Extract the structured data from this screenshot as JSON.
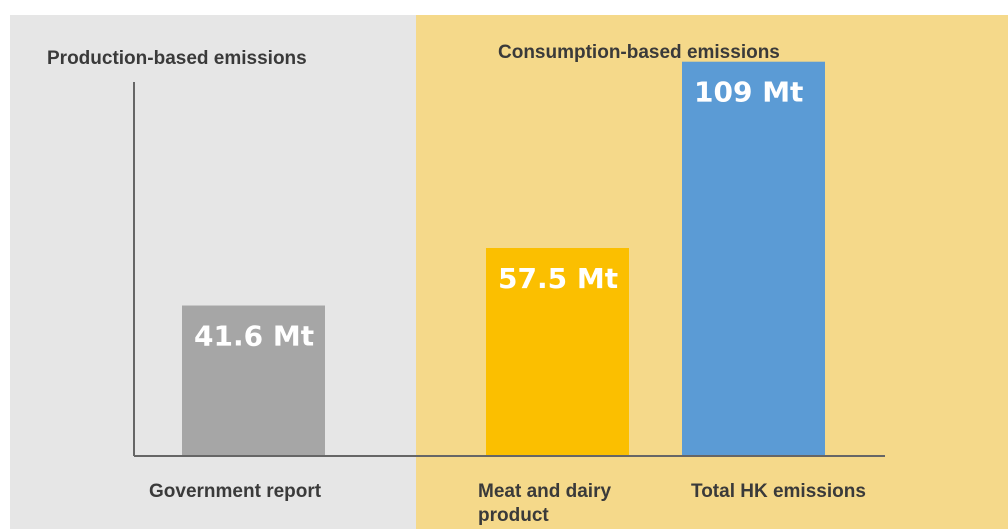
{
  "chart_data": {
    "type": "bar",
    "title": "",
    "xlabel": "",
    "ylabel": "",
    "ylim": [
      0,
      115
    ],
    "grid": false,
    "panels": [
      {
        "title": "Production-based emissions",
        "color": "#e6e6e6"
      },
      {
        "title": "Consumption-based emissions",
        "color": "#f5d98a"
      }
    ],
    "categories": [
      "Government report",
      "Meat and dairy product",
      "Total HK emissions"
    ],
    "category_lines": [
      [
        "Government report"
      ],
      [
        "Meat and dairy",
        "product"
      ],
      [
        "Total HK emissions"
      ]
    ],
    "values": [
      41.6,
      57.5,
      109
    ],
    "data_labels": [
      "41.6 Mt",
      "57.5 Mt",
      "109 Mt"
    ],
    "colors": [
      "#a6a6a6",
      "#fbbf00",
      "#5b9bd5"
    ]
  }
}
